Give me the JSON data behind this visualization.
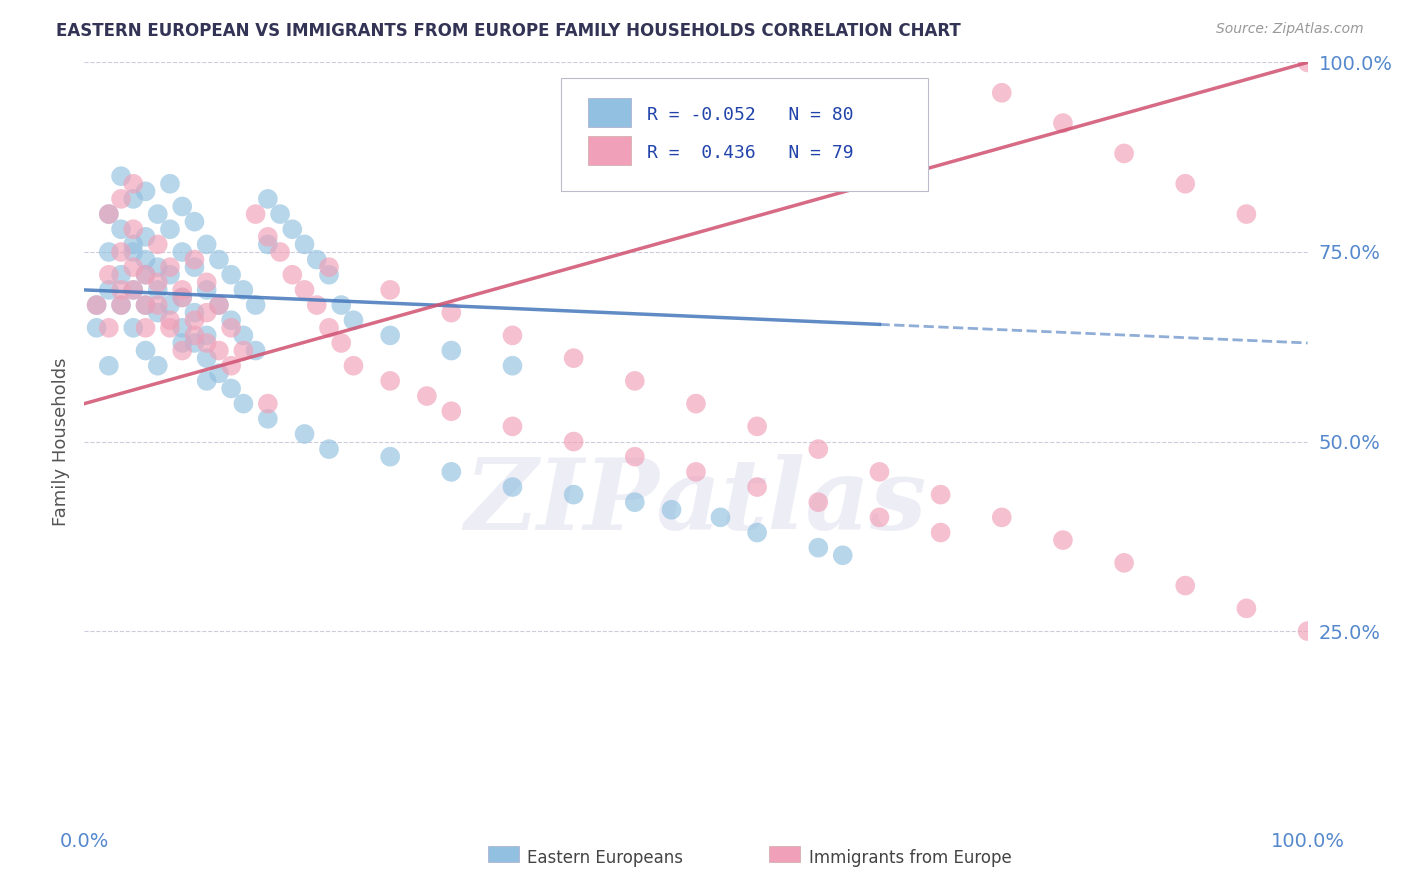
{
  "title": "EASTERN EUROPEAN VS IMMIGRANTS FROM EUROPE FAMILY HOUSEHOLDS CORRELATION CHART",
  "source_text": "Source: ZipAtlas.com",
  "ylabel": "Family Households",
  "blue_R": -0.052,
  "blue_N": 80,
  "pink_R": 0.436,
  "pink_N": 79,
  "blue_color": "#92C0E0",
  "pink_color": "#F0A0B8",
  "trend_blue_color": "#4477BB",
  "trend_pink_color": "#D05070",
  "legend_label_blue": "Eastern Europeans",
  "legend_label_pink": "Immigrants from Europe",
  "watermark": "ZIPatlas",
  "background_color": "#FFFFFF",
  "grid_color": "#CCCCDD",
  "tick_color": "#5588CC",
  "blue_x": [
    1,
    2,
    2,
    3,
    3,
    3,
    4,
    4,
    4,
    5,
    5,
    5,
    5,
    6,
    6,
    6,
    7,
    7,
    7,
    8,
    8,
    8,
    8,
    9,
    9,
    9,
    10,
    10,
    10,
    10,
    11,
    11,
    12,
    12,
    13,
    13,
    14,
    14,
    15,
    15,
    16,
    17,
    18,
    19,
    20,
    21,
    22,
    25,
    30,
    35,
    1,
    2,
    2,
    3,
    4,
    4,
    5,
    5,
    6,
    6,
    7,
    8,
    9,
    10,
    11,
    12,
    13,
    15,
    18,
    20,
    25,
    30,
    35,
    40,
    45,
    48,
    52,
    55,
    60,
    62
  ],
  "blue_y": [
    68,
    80,
    75,
    85,
    78,
    72,
    82,
    76,
    70,
    83,
    77,
    74,
    68,
    80,
    73,
    67,
    84,
    78,
    72,
    81,
    75,
    69,
    63,
    79,
    73,
    67,
    76,
    70,
    64,
    58,
    74,
    68,
    72,
    66,
    70,
    64,
    68,
    62,
    82,
    76,
    80,
    78,
    76,
    74,
    72,
    68,
    66,
    64,
    62,
    60,
    65,
    70,
    60,
    68,
    75,
    65,
    72,
    62,
    70,
    60,
    68,
    65,
    63,
    61,
    59,
    57,
    55,
    53,
    51,
    49,
    48,
    46,
    44,
    43,
    42,
    41,
    40,
    38,
    36,
    35
  ],
  "pink_x": [
    1,
    2,
    2,
    3,
    3,
    4,
    4,
    5,
    5,
    6,
    6,
    7,
    7,
    8,
    8,
    9,
    9,
    10,
    10,
    11,
    12,
    13,
    14,
    15,
    16,
    17,
    18,
    19,
    20,
    21,
    22,
    25,
    28,
    30,
    35,
    40,
    45,
    50,
    55,
    60,
    65,
    70,
    75,
    80,
    85,
    90,
    95,
    100,
    3,
    4,
    5,
    6,
    7,
    8,
    9,
    10,
    11,
    12,
    15,
    20,
    25,
    30,
    35,
    40,
    45,
    50,
    55,
    60,
    65,
    70,
    75,
    80,
    85,
    90,
    95,
    100,
    2,
    3,
    4
  ],
  "pink_y": [
    68,
    72,
    65,
    75,
    68,
    78,
    70,
    72,
    65,
    76,
    68,
    73,
    65,
    70,
    62,
    74,
    66,
    71,
    63,
    68,
    65,
    62,
    80,
    77,
    75,
    72,
    70,
    68,
    65,
    63,
    60,
    58,
    56,
    54,
    52,
    50,
    48,
    46,
    44,
    42,
    40,
    38,
    96,
    92,
    88,
    84,
    80,
    100,
    70,
    73,
    68,
    71,
    66,
    69,
    64,
    67,
    62,
    60,
    55,
    73,
    70,
    67,
    64,
    61,
    58,
    55,
    52,
    49,
    46,
    43,
    40,
    37,
    34,
    31,
    28,
    25,
    80,
    82,
    84
  ]
}
